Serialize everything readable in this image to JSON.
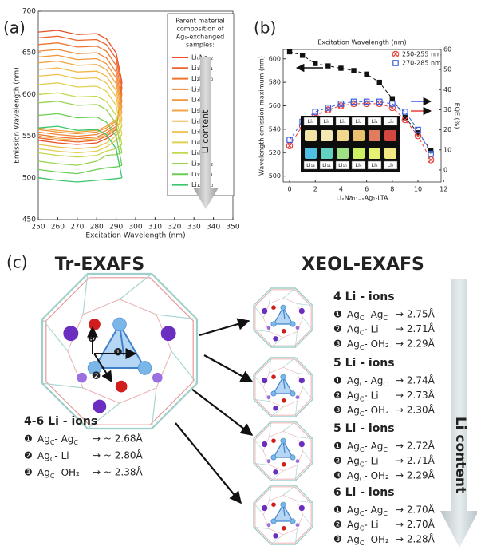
{
  "panels": {
    "a": "(a)",
    "b": "(b)",
    "c": "(c)"
  },
  "chart_data": [
    {
      "type": "line",
      "xlabel": "Excitation Wavelength (nm)",
      "ylabel": "Emission Wavelength (nm)",
      "xlim": [
        250,
        350
      ],
      "xticks": [
        250,
        260,
        270,
        280,
        290,
        300,
        310,
        320,
        330,
        340,
        350
      ],
      "ylim": [
        450,
        700
      ],
      "yticks": [
        450,
        500,
        550,
        600,
        650,
        700
      ],
      "legend_title": [
        "Parent material",
        "composition of",
        "Ag₁-exchanged",
        "samples:"
      ],
      "arrow_label": "Li content",
      "x": [
        250,
        260,
        270,
        280,
        285,
        290,
        293
      ],
      "series": [
        {
          "name": "Li₀Na₁₂",
          "color": "#e8502a",
          "values": [
            675,
            677,
            672,
            673,
            667,
            650,
            615
          ],
          "lower": [
            545,
            542,
            540,
            542,
            547,
            555,
            615
          ]
        },
        {
          "name": "Li₁Na₁₁",
          "color": "#ec632c",
          "values": [
            668,
            670,
            665,
            666,
            660,
            643,
            608
          ],
          "lower": [
            548,
            545,
            543,
            545,
            550,
            558,
            608
          ]
        },
        {
          "name": "Li₂Na₁₀",
          "color": "#ee7430",
          "values": [
            660,
            662,
            657,
            658,
            652,
            635,
            600
          ],
          "lower": [
            552,
            549,
            547,
            549,
            554,
            562,
            600
          ]
        },
        {
          "name": "Li₃Na₉",
          "color": "#f08536",
          "values": [
            652,
            654,
            649,
            650,
            644,
            627,
            592
          ],
          "lower": [
            555,
            552,
            550,
            552,
            557,
            565,
            592
          ]
        },
        {
          "name": "Li₄Na₈",
          "color": "#f2953c",
          "values": [
            645,
            647,
            642,
            643,
            637,
            620,
            585
          ],
          "lower": [
            558,
            555,
            553,
            555,
            560,
            568,
            585
          ]
        },
        {
          "name": "Li₅Na₇",
          "color": "#f3a543",
          "values": [
            638,
            640,
            635,
            636,
            630,
            613,
            578
          ],
          "lower": [
            560,
            557,
            555,
            557,
            562,
            570,
            578
          ]
        },
        {
          "name": "Li₆Na₆",
          "color": "#f2b54a",
          "values": [
            630,
            632,
            627,
            628,
            622,
            605,
            570
          ],
          "lower": [
            550,
            547,
            545,
            547,
            552,
            560,
            570
          ]
        },
        {
          "name": "Li₇Na₅",
          "color": "#eec44f",
          "values": [
            622,
            624,
            619,
            620,
            614,
            597,
            562
          ],
          "lower": [
            540,
            537,
            535,
            537,
            542,
            550,
            562
          ]
        },
        {
          "name": "Li₈Na₄",
          "color": "#e0cf50",
          "values": [
            612,
            614,
            609,
            610,
            604,
            587,
            552
          ],
          "lower": [
            535,
            532,
            530,
            532,
            537,
            545,
            552
          ]
        },
        {
          "name": "Li₉Na₃",
          "color": "#c4d74e",
          "values": [
            600,
            602,
            597,
            598,
            592,
            575,
            540
          ],
          "lower": [
            530,
            527,
            525,
            527,
            532,
            535,
            540
          ]
        },
        {
          "name": "Li₁₀Na₂",
          "color": "#98d24e",
          "values": [
            590,
            592,
            587,
            588,
            582,
            565,
            530
          ],
          "lower": [
            520,
            517,
            515,
            520,
            527,
            528,
            530
          ]
        },
        {
          "name": "Li₁₁Na₁",
          "color": "#6ace55",
          "values": [
            575,
            577,
            572,
            573,
            567,
            550,
            515
          ],
          "lower": [
            510,
            507,
            505,
            510,
            512,
            513,
            515
          ]
        },
        {
          "name": "Li₁₂Na₀",
          "color": "#3dc66a",
          "values": [
            560,
            562,
            557,
            558,
            552,
            535,
            500
          ],
          "lower": [
            500,
            497,
            495,
            497,
            498,
            499,
            500
          ]
        }
      ]
    },
    {
      "type": "line",
      "x2label": "Excitation Wavelength (nm)",
      "xlabel": "LiₓNa₁₁₋ₓAg₁-LTA",
      "ylabel": "Wavelength emission maximum (nm)",
      "y2label": "EQE (%)",
      "xlim": [
        -0.5,
        11.8
      ],
      "xticks": [
        0,
        2,
        4,
        6,
        8,
        10,
        12
      ],
      "ylim": [
        495,
        608
      ],
      "yticks": [
        500,
        520,
        540,
        560,
        580,
        600
      ],
      "y2lim": [
        -6,
        60
      ],
      "y2ticks": [
        0,
        10,
        20,
        30,
        40,
        50,
        60
      ],
      "x": [
        0,
        1,
        2,
        3,
        4,
        5,
        6,
        7,
        8,
        9,
        10,
        11
      ],
      "series": [
        {
          "color": "#111111",
          "marker": "square",
          "values": [
            606,
            603,
            596,
            594,
            592,
            590,
            587,
            580,
            566,
            550,
            537,
            522
          ]
        },
        {
          "name": "250-255 nm",
          "color": "#e8403a",
          "marker": "x-circle",
          "axis": "y2",
          "values": [
            12,
            22,
            27,
            30,
            32,
            33,
            33,
            33,
            31,
            25,
            17,
            5
          ]
        },
        {
          "name": "270-285 nm",
          "color": "#3a5ee0",
          "marker": "open-square",
          "axis": "y2",
          "values": [
            15,
            24,
            29,
            31,
            33,
            34,
            34,
            34,
            33,
            29,
            20,
            8
          ]
        }
      ]
    }
  ],
  "photo": {
    "top": [
      "Li₅",
      "Li₄",
      "Li₃",
      "Li₂",
      "Li₁",
      "Li₀"
    ],
    "bottom": [
      "Li₁₂",
      "Li₁₁",
      "Li₁₀",
      "Li₉",
      "Li₈",
      "Li₇"
    ]
  },
  "exafs": {
    "left_title": "Tr-EXAFS",
    "right_title": "XEOL-EXAFS",
    "arrow_label": "Li content",
    "markers": [
      "❸",
      "❶",
      "❷"
    ],
    "tr": {
      "heading": "4-6 Li - ions",
      "rows": [
        {
          "num": "❶",
          "label": [
            "Ag",
            "C",
            "- Ag",
            "C"
          ],
          "value": "→ ~ 2.68Å"
        },
        {
          "num": "❷",
          "label": [
            "Ag",
            "C",
            "- Li"
          ],
          "value": "→ ~ 2.80Å"
        },
        {
          "num": "❸",
          "label": [
            "Ag",
            "C",
            "- OH₂"
          ],
          "value": "→ ~ 2.38Å"
        }
      ]
    },
    "xeol": [
      {
        "heading": "4 Li - ions",
        "rows": [
          {
            "num": "❶",
            "label": [
              "Ag",
              "C",
              "- Ag",
              "C"
            ],
            "value": "→  2.75Å"
          },
          {
            "num": "❷",
            "label": [
              "Ag",
              "C",
              "- Li"
            ],
            "value": "→  2.71Å"
          },
          {
            "num": "❸",
            "label": [
              "Ag",
              "C",
              "- OH₂"
            ],
            "value": "→  2.29Å"
          }
        ]
      },
      {
        "heading": "5 Li - ions",
        "rows": [
          {
            "num": "❶",
            "label": [
              "Ag",
              "C",
              "- Ag",
              "C"
            ],
            "value": "→  2.74Å"
          },
          {
            "num": "❷",
            "label": [
              "Ag",
              "C",
              "- Li"
            ],
            "value": "→  2.73Å"
          },
          {
            "num": "❸",
            "label": [
              "Ag",
              "C",
              "- OH₂"
            ],
            "value": "→  2.30Å"
          }
        ]
      },
      {
        "heading": "5 Li - ions",
        "rows": [
          {
            "num": "❶",
            "label": [
              "Ag",
              "C",
              "- Ag",
              "C"
            ],
            "value": "→  2.72Å"
          },
          {
            "num": "❷",
            "label": [
              "Ag",
              "C",
              "- Li"
            ],
            "value": "→  2.71Å"
          },
          {
            "num": "❸",
            "label": [
              "Ag",
              "C",
              "- OH₂"
            ],
            "value": "→  2.29Å"
          }
        ]
      },
      {
        "heading": "6 Li - ions",
        "rows": [
          {
            "num": "❶",
            "label": [
              "Ag",
              "C",
              "- Ag",
              "C"
            ],
            "value": "→  2.70Å"
          },
          {
            "num": "❷",
            "label": [
              "Ag",
              "C",
              "- Li"
            ],
            "value": "→  2.70Å"
          },
          {
            "num": "❸",
            "label": [
              "Ag",
              "C",
              "- OH₂"
            ],
            "value": "→  2.28Å"
          }
        ]
      }
    ]
  }
}
